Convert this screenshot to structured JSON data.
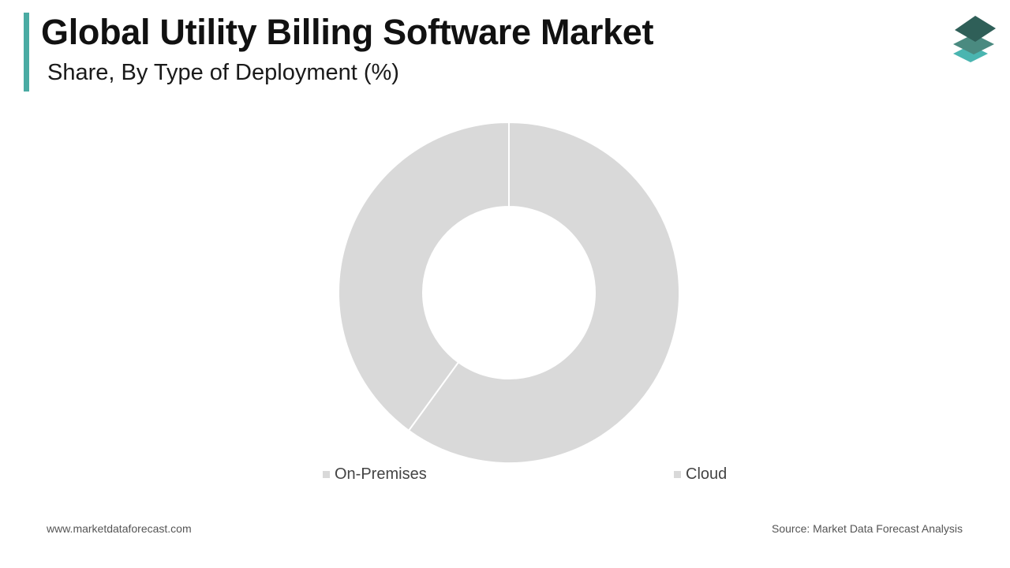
{
  "header": {
    "title": "Global Utility Billing Software Market",
    "subtitle": "Share, By Type of Deployment (%)",
    "accent_color": "#4aaba3"
  },
  "logo": {
    "icon": "stacked-layers-logo-icon",
    "colors": [
      "#2f5f58",
      "#4a8a80",
      "#4ab5b0"
    ]
  },
  "chart_data": {
    "type": "pie",
    "donut": true,
    "categories": [
      "On-Premises",
      "Cloud"
    ],
    "values": [
      40,
      60
    ],
    "slice_color": "#d9d9d9",
    "slice_border_color": "#ffffff",
    "legend_swatch_color": "#d9d9d9",
    "legend_position": "bottom",
    "title": "",
    "xlabel": "",
    "ylabel": ""
  },
  "legend": {
    "items": [
      {
        "label": "On-Premises"
      },
      {
        "label": "Cloud"
      }
    ]
  },
  "footer": {
    "website": "www.marketdataforecast.com",
    "source": "Source: Market Data Forecast Analysis"
  }
}
